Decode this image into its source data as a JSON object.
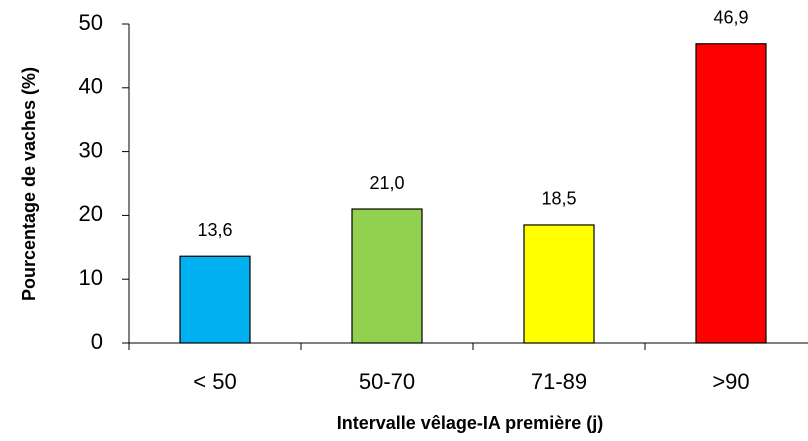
{
  "chart_data": {
    "type": "bar",
    "categories": [
      "< 50",
      "50-70",
      "71-89",
      ">90"
    ],
    "values": [
      13.6,
      21.0,
      18.5,
      46.9
    ],
    "value_labels": [
      "13,6",
      "21,0",
      "18,5",
      "46,9"
    ],
    "colors": [
      "#00b0f0",
      "#92d050",
      "#ffff00",
      "#ff0000"
    ],
    "x_label": "Intervalle vêlage-IA première (j)",
    "y_label": "Pourcentage de vaches (%)",
    "ylim": [
      0,
      50
    ],
    "yticks": [
      0,
      10,
      20,
      30,
      40,
      50
    ],
    "grid": false
  }
}
